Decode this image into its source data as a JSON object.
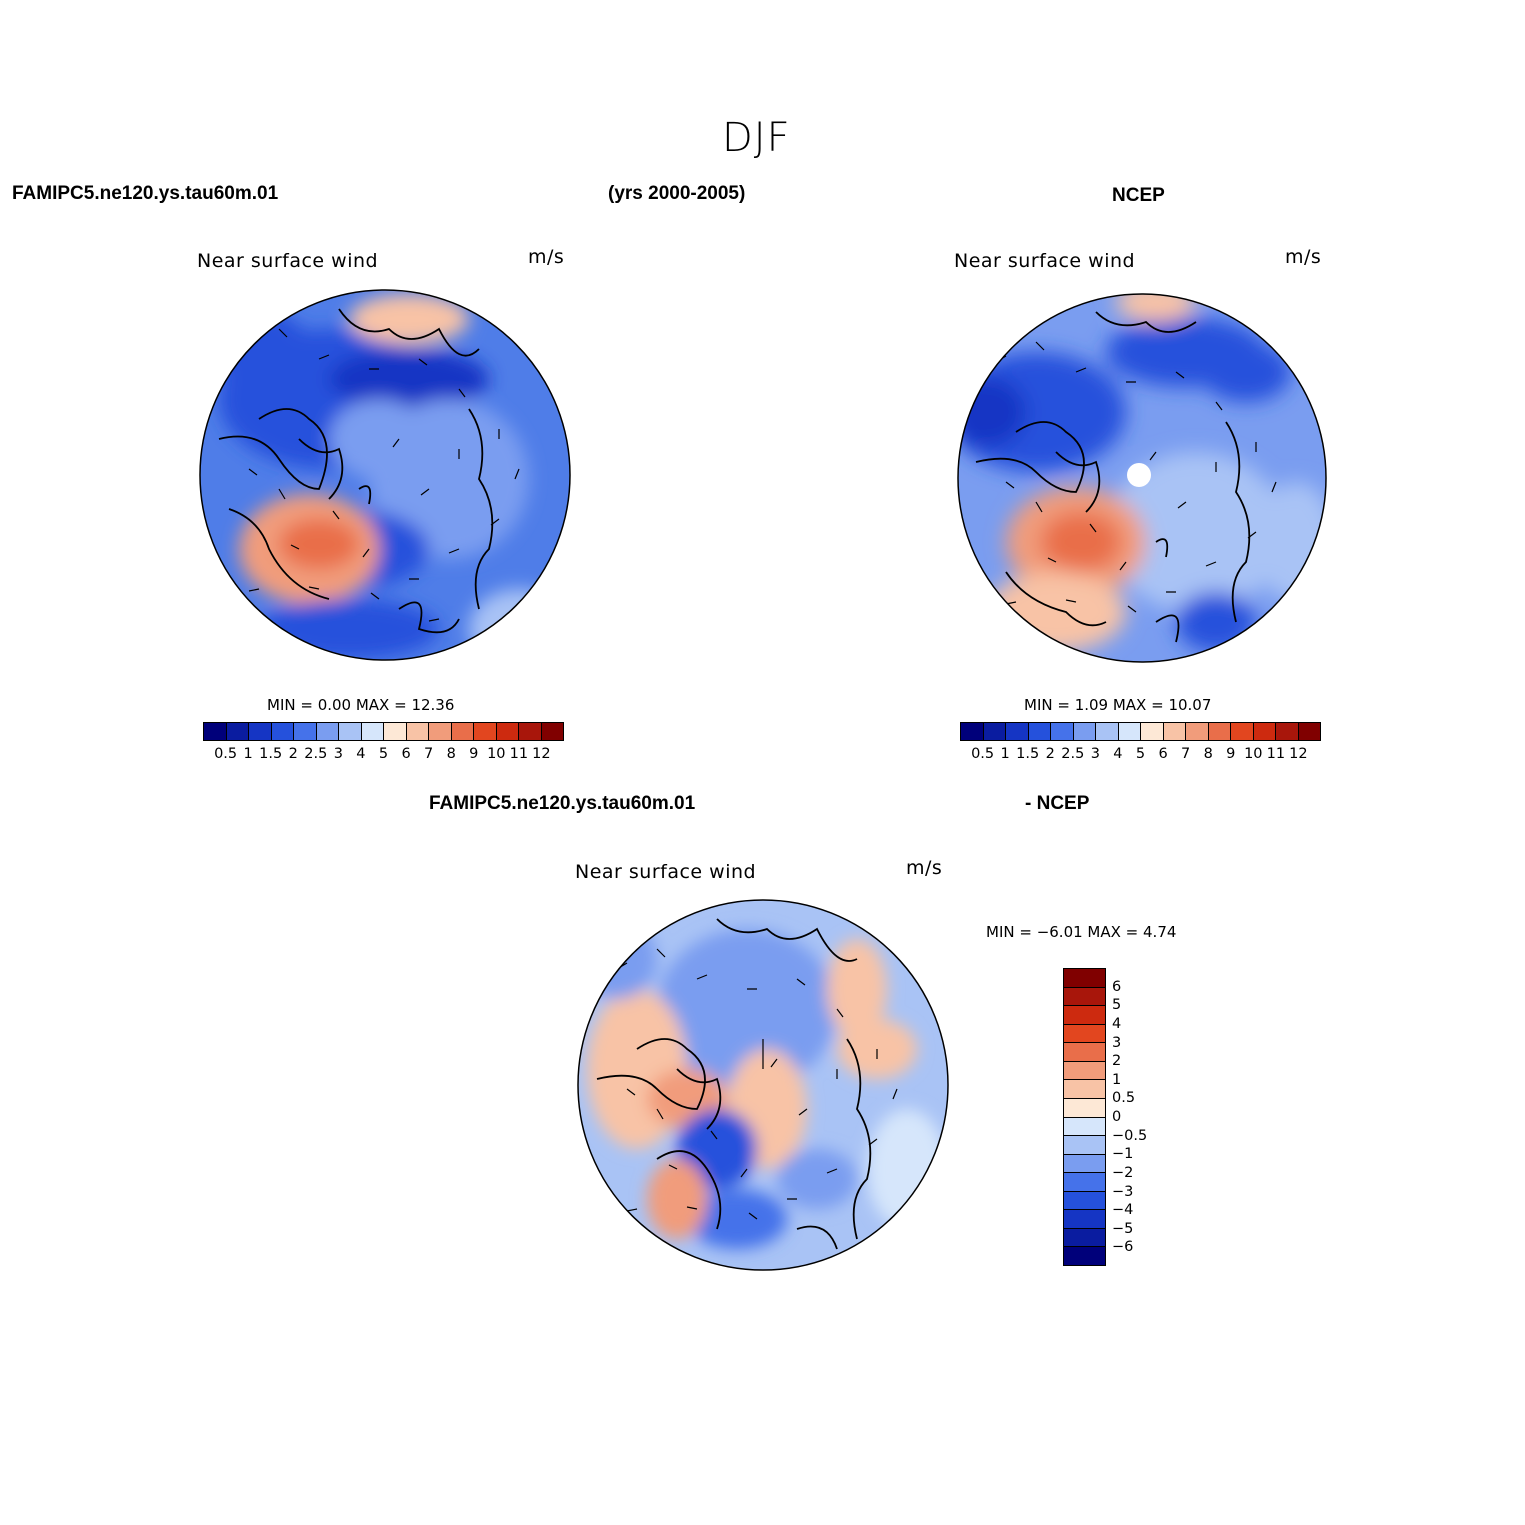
{
  "title": "DJF",
  "header": {
    "case_name": "FAMIPC5.ne120.ys.tau60m.01",
    "years": "(yrs 2000-2005)",
    "reference": "NCEP"
  },
  "diff_header": {
    "case_name": "FAMIPC5.ne120.ys.tau60m.01",
    "reference": "- NCEP"
  },
  "panels": {
    "model": {
      "variable": "Near surface wind",
      "units": "m/s",
      "minmax": "MIN =    0.00  MAX =   12.36"
    },
    "obs": {
      "variable": "Near surface wind",
      "units": "m/s",
      "minmax": "MIN =    1.09  MAX =   10.07"
    },
    "diff": {
      "variable": "Near surface wind",
      "units": "m/s",
      "minmax": "MIN =   −6.01  MAX =    4.74"
    }
  },
  "colorbar_abs": {
    "labels": [
      "0.5",
      "1",
      "1.5",
      "2",
      "2.5",
      "3",
      "4",
      "5",
      "6",
      "7",
      "8",
      "9",
      "10",
      "11",
      "12"
    ],
    "colors": [
      "#00007a",
      "#0a1ca0",
      "#1535c4",
      "#2551dc",
      "#4572ea",
      "#7a9df0",
      "#a9c3f5",
      "#d6e6fb",
      "#fde8d6",
      "#f8c3a6",
      "#f19c7b",
      "#e96e4a",
      "#e2461f",
      "#cd2a0f",
      "#a8160b",
      "#800000"
    ]
  },
  "colorbar_diff": {
    "labels": [
      "6",
      "5",
      "4",
      "3",
      "2",
      "1",
      "0.5",
      "0",
      "−0.5",
      "−1",
      "−2",
      "−3",
      "−4",
      "−5",
      "−6"
    ],
    "colors": [
      "#800000",
      "#a8160b",
      "#cd2a0f",
      "#e2461f",
      "#e96e4a",
      "#f19c7b",
      "#f8c3a6",
      "#fde8d6",
      "#d6e6fb",
      "#a9c3f5",
      "#7a9df0",
      "#4572ea",
      "#2551dc",
      "#1535c4",
      "#0a1ca0",
      "#00007a"
    ]
  }
}
